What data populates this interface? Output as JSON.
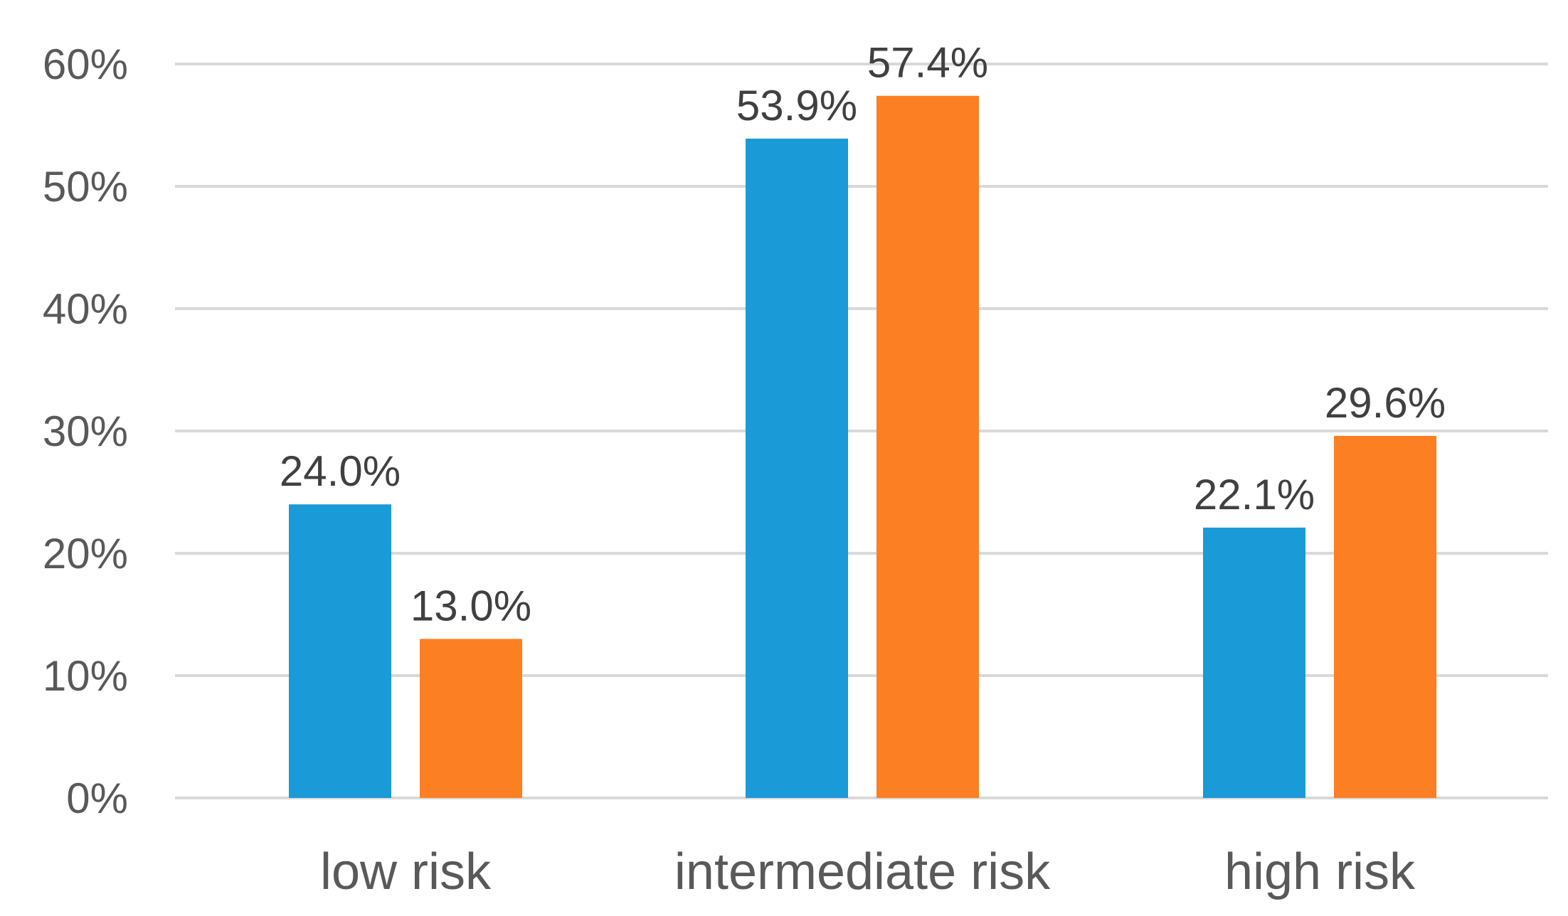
{
  "chart_data": {
    "type": "bar",
    "categories": [
      "low risk",
      "intermediate risk",
      "high risk"
    ],
    "series": [
      {
        "values": [
          24.0,
          53.9,
          22.1
        ],
        "labels": [
          "24.0%",
          "53.9%",
          "22.1%"
        ],
        "color": "#1a9ad6"
      },
      {
        "values": [
          13.0,
          57.4,
          29.6
        ],
        "labels": [
          "13.0%",
          "57.4%",
          "29.6%"
        ],
        "color": "#fd7f23"
      }
    ],
    "y_ticks": [
      "0%",
      "10%",
      "20%",
      "30%",
      "40%",
      "50%",
      "60%"
    ],
    "ylim": [
      0,
      60
    ],
    "grid": true,
    "legend": "none",
    "title": "",
    "xlabel": "",
    "ylabel": ""
  },
  "colors": {
    "grid": "#d9d9d9",
    "tick_text": "#595959",
    "data_label_text": "#404040"
  }
}
